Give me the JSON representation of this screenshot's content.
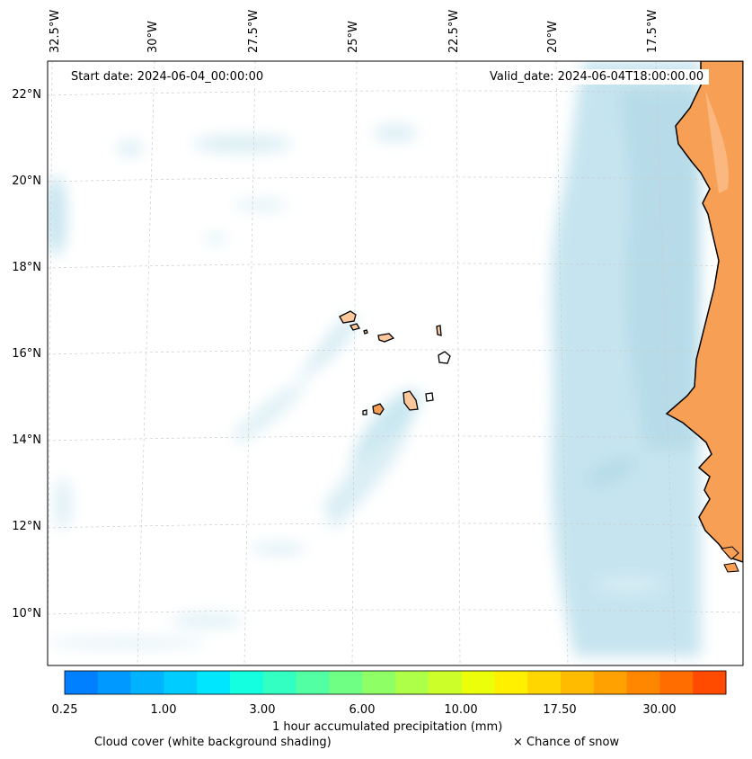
{
  "header": {
    "start_date": "Start date: 2024-06-04_00:00:00",
    "valid_date": "Valid_date: 2024-06-04T18:00:00.00"
  },
  "axes": {
    "longitude_labels": [
      "32.5°W",
      "30°W",
      "27.5°W",
      "25°W",
      "22.5°W",
      "20°W",
      "17.5°W"
    ],
    "latitude_labels": [
      "22°N",
      "20°N",
      "18°N",
      "16°N",
      "14°N",
      "12°N",
      "10°N"
    ]
  },
  "colorbar": {
    "label": "1 hour accumulated precipitation (mm)",
    "tick_labels": [
      "0.25",
      "1.00",
      "3.00",
      "6.00",
      "10.00",
      "17.50",
      "30.00"
    ],
    "colors": [
      "#0080ff",
      "#0099ff",
      "#00b3ff",
      "#00ccff",
      "#00e6ff",
      "#14ffe0",
      "#33ffc2",
      "#52ffa3",
      "#70ff85",
      "#8fff66",
      "#adff47",
      "#ccff29",
      "#ebff0a",
      "#fff000",
      "#ffd600",
      "#ffbb00",
      "#ffa100",
      "#ff8700",
      "#ff6c00",
      "#ff4b00"
    ]
  },
  "captions": {
    "cloud_cover": "Cloud cover (white background shading)",
    "snow": "× Chance of snow"
  },
  "colors": {
    "land": "#f7a055",
    "land_light": "#fbc89c",
    "cloud": "#a9d6e5",
    "grid": "#cccccc"
  }
}
